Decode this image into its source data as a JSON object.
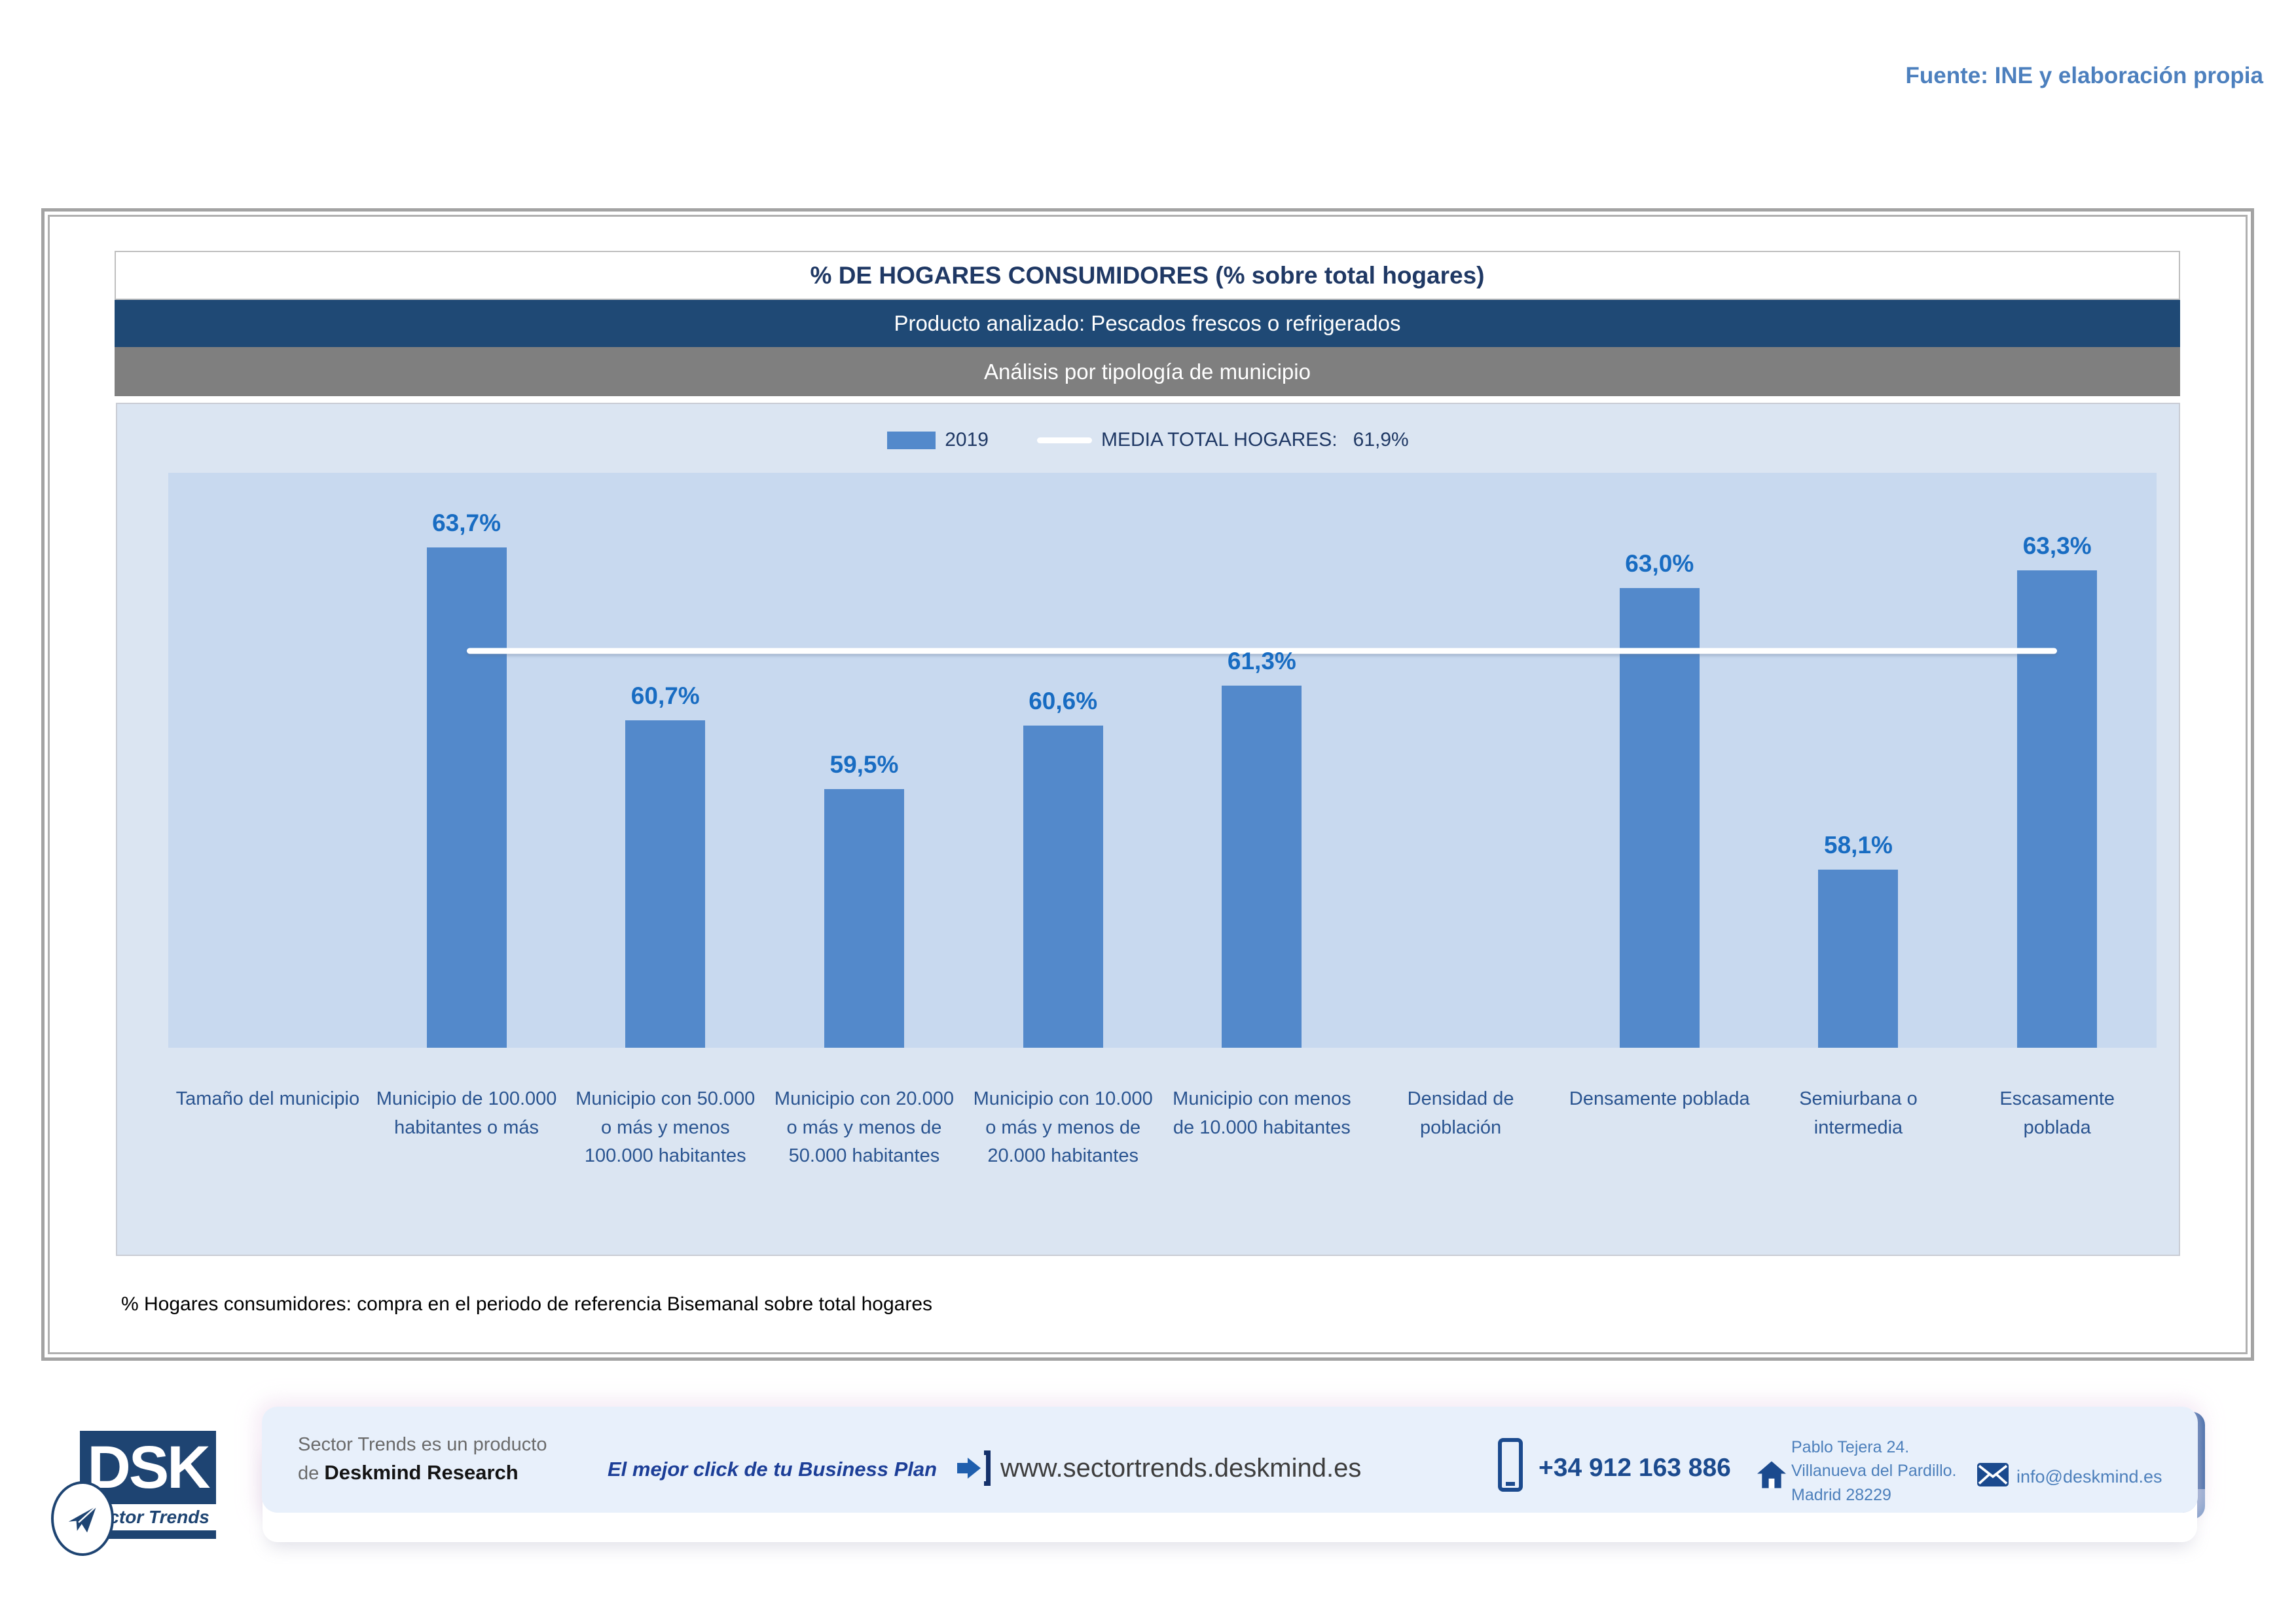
{
  "source": "Fuente: INE y elaboración propia",
  "header": {
    "title": "% DE HOGARES CONSUMIDORES (% sobre total hogares)",
    "product": "Producto analizado: Pescados frescos o refrigerados",
    "analysis": "Análisis por tipología de municipio"
  },
  "legend": {
    "series_label": "2019",
    "mean_label": "MEDIA TOTAL  HOGARES:",
    "mean_value": "61,9%"
  },
  "chart_data": {
    "type": "bar",
    "title": "% DE HOGARES CONSUMIDORES (% sobre total hogares)",
    "subtitle": "Producto analizado: Pescados frescos o refrigerados",
    "categories": [
      "Tamaño del municipio",
      "Municipio de 100.000 habitantes o más",
      "Municipio con 50.000 o más y menos 100.000 habitantes",
      "Municipio con 20.000 o más y menos de 50.000 habitantes",
      "Municipio con 10.000 o más y menos de 20.000 habitantes",
      "Municipio con menos de 10.000 habitantes",
      "Densidad de población",
      "Densamente poblada",
      "Semiurbana o intermedia",
      "Escasamente poblada"
    ],
    "series": [
      {
        "name": "2019",
        "values": [
          null,
          63.7,
          60.7,
          59.5,
          60.6,
          61.3,
          null,
          63.0,
          58.1,
          63.3
        ]
      }
    ],
    "value_labels": [
      "",
      "63,7%",
      "60,7%",
      "59,5%",
      "60,6%",
      "61,3%",
      "",
      "63,0%",
      "58,1%",
      "63,3%"
    ],
    "mean_line": {
      "label": "MEDIA TOTAL HOGARES",
      "value": 61.9,
      "display": "61,9%"
    },
    "ylim": [
      55,
      65
    ],
    "grid": false,
    "legend_position": "top",
    "bar_color": "#5389cb",
    "mean_line_color": "#ffffff"
  },
  "footnote": "% Hogares consumidores: compra en el periodo de referencia Bisemanal sobre total hogares",
  "footer": {
    "logo": {
      "acronym": "DSK",
      "tagline": "Sector Trends"
    },
    "brand_line1": "Sector Trends es un producto",
    "brand_line2_prefix": "de ",
    "brand_line2_name": "Deskmind Research",
    "slogan": "El mejor click de tu Business Plan",
    "website": "www.sectortrends.deskmind.es",
    "phone": "+34 912 163 886",
    "address_line1": "Pablo Tejera 24.",
    "address_line2": "Villanueva del Pardillo.",
    "address_line3": "Madrid 28229",
    "email": "info@deskmind.es"
  }
}
